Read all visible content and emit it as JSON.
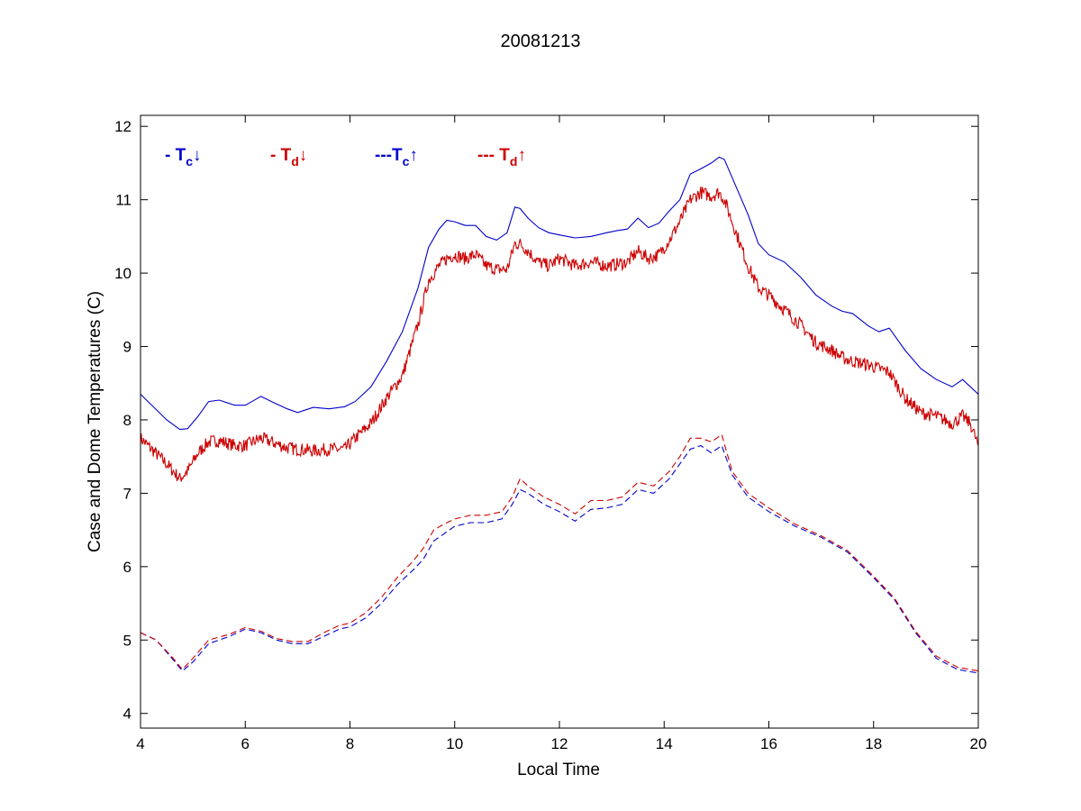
{
  "chart_data": {
    "type": "line",
    "title": "20081213",
    "xlabel": "Local Time",
    "ylabel": "Case and Dome Temperatures (C)",
    "xlim": [
      4,
      20
    ],
    "ylim": [
      3.8,
      12.15
    ],
    "xticks": [
      4,
      6,
      8,
      10,
      12,
      14,
      16,
      18,
      20
    ],
    "yticks": [
      4,
      5,
      6,
      7,
      8,
      9,
      10,
      11,
      12
    ],
    "grid": false,
    "legend_placement": "top-left, inside plot",
    "legend": [
      {
        "prefix": "- ",
        "base": "T",
        "sub": "c",
        "arrow": "↓",
        "color": "#0000cc"
      },
      {
        "prefix": "- ",
        "base": "T",
        "sub": "d",
        "arrow": "↓",
        "color": "#cc0000"
      },
      {
        "prefix": "---",
        "base": "T",
        "sub": "c",
        "arrow": "↑",
        "color": "#0000cc"
      },
      {
        "prefix": "--- ",
        "base": "T",
        "sub": "d",
        "arrow": "↑",
        "color": "#cc0000"
      }
    ],
    "series": [
      {
        "color": "#0000cc",
        "style": "solid",
        "noise": 0,
        "x": [
          4.0,
          4.5,
          4.75,
          4.9,
          5.1,
          5.3,
          5.5,
          5.8,
          6.0,
          6.2,
          6.3,
          6.5,
          6.8,
          7.0,
          7.3,
          7.6,
          7.9,
          8.1,
          8.4,
          8.7,
          9.0,
          9.3,
          9.5,
          9.7,
          9.85,
          10.0,
          10.2,
          10.4,
          10.6,
          10.8,
          11.0,
          11.15,
          11.25,
          11.4,
          11.6,
          11.8,
          12.0,
          12.3,
          12.6,
          12.9,
          13.1,
          13.3,
          13.5,
          13.7,
          13.9,
          14.1,
          14.3,
          14.5,
          14.7,
          14.9,
          15.05,
          15.15,
          15.3,
          15.6,
          15.8,
          16.0,
          16.3,
          16.6,
          16.9,
          17.2,
          17.4,
          17.6,
          17.9,
          18.1,
          18.3,
          18.6,
          18.9,
          19.2,
          19.5,
          19.7,
          19.85,
          20.0
        ],
        "y": [
          8.35,
          8.0,
          7.87,
          7.88,
          8.05,
          8.25,
          8.27,
          8.2,
          8.2,
          8.28,
          8.32,
          8.25,
          8.15,
          8.1,
          8.17,
          8.15,
          8.18,
          8.25,
          8.45,
          8.8,
          9.2,
          9.8,
          10.35,
          10.6,
          10.72,
          10.7,
          10.65,
          10.65,
          10.5,
          10.45,
          10.55,
          10.9,
          10.88,
          10.75,
          10.62,
          10.55,
          10.52,
          10.48,
          10.5,
          10.55,
          10.58,
          10.6,
          10.75,
          10.62,
          10.68,
          10.85,
          11.0,
          11.35,
          11.42,
          11.5,
          11.58,
          11.55,
          11.3,
          10.8,
          10.4,
          10.25,
          10.15,
          9.95,
          9.7,
          9.55,
          9.48,
          9.45,
          9.28,
          9.2,
          9.25,
          8.95,
          8.7,
          8.55,
          8.45,
          8.55,
          8.45,
          8.35
        ]
      },
      {
        "color": "#cc0000",
        "style": "solid",
        "noise": 0.09,
        "x": [
          4.0,
          4.5,
          4.75,
          4.9,
          5.1,
          5.3,
          5.5,
          5.8,
          6.0,
          6.2,
          6.3,
          6.5,
          6.8,
          7.0,
          7.3,
          7.6,
          7.9,
          8.1,
          8.4,
          8.7,
          9.0,
          9.3,
          9.5,
          9.7,
          9.85,
          10.0,
          10.2,
          10.4,
          10.6,
          10.8,
          11.0,
          11.15,
          11.25,
          11.4,
          11.6,
          11.8,
          12.0,
          12.3,
          12.6,
          12.9,
          13.1,
          13.3,
          13.5,
          13.7,
          13.9,
          14.1,
          14.3,
          14.5,
          14.7,
          14.9,
          15.05,
          15.15,
          15.3,
          15.6,
          15.8,
          16.0,
          16.3,
          16.6,
          16.9,
          17.2,
          17.4,
          17.6,
          17.9,
          18.1,
          18.3,
          18.6,
          18.9,
          19.2,
          19.5,
          19.7,
          19.85,
          20.0
        ],
        "y": [
          7.75,
          7.4,
          7.2,
          7.3,
          7.55,
          7.7,
          7.72,
          7.65,
          7.65,
          7.72,
          7.75,
          7.7,
          7.62,
          7.6,
          7.58,
          7.6,
          7.6,
          7.75,
          7.95,
          8.3,
          8.6,
          9.3,
          9.9,
          10.1,
          10.2,
          10.25,
          10.2,
          10.25,
          10.1,
          10.05,
          10.05,
          10.4,
          10.4,
          10.3,
          10.15,
          10.1,
          10.2,
          10.1,
          10.15,
          10.1,
          10.12,
          10.15,
          10.3,
          10.2,
          10.25,
          10.45,
          10.7,
          11.0,
          11.1,
          11.05,
          11.1,
          11.0,
          10.7,
          10.1,
          9.8,
          9.7,
          9.5,
          9.3,
          9.05,
          8.95,
          8.85,
          8.8,
          8.75,
          8.7,
          8.65,
          8.3,
          8.1,
          8.05,
          7.95,
          8.05,
          7.95,
          7.65
        ]
      },
      {
        "color": "#0000cc",
        "style": "dashed",
        "noise": 0,
        "x": [
          4.0,
          4.3,
          4.6,
          4.8,
          5.0,
          5.3,
          5.7,
          6.0,
          6.3,
          6.6,
          6.9,
          7.2,
          7.5,
          7.8,
          8.0,
          8.3,
          8.6,
          8.9,
          9.2,
          9.4,
          9.6,
          9.8,
          10.0,
          10.3,
          10.6,
          10.9,
          11.1,
          11.25,
          11.4,
          11.7,
          12.0,
          12.3,
          12.6,
          12.9,
          13.2,
          13.5,
          13.8,
          14.1,
          14.3,
          14.5,
          14.7,
          14.9,
          15.1,
          15.3,
          15.6,
          16.0,
          16.5,
          17.0,
          17.5,
          18.0,
          18.4,
          18.8,
          19.2,
          19.6,
          20.0
        ],
        "y": [
          5.1,
          5.0,
          4.75,
          4.58,
          4.7,
          4.95,
          5.05,
          5.15,
          5.1,
          5.0,
          4.95,
          4.95,
          5.05,
          5.15,
          5.18,
          5.3,
          5.5,
          5.75,
          5.95,
          6.1,
          6.35,
          6.45,
          6.55,
          6.6,
          6.6,
          6.65,
          6.85,
          7.05,
          7.0,
          6.85,
          6.75,
          6.62,
          6.78,
          6.8,
          6.85,
          7.05,
          7.0,
          7.2,
          7.4,
          7.6,
          7.65,
          7.55,
          7.65,
          7.25,
          6.95,
          6.75,
          6.55,
          6.4,
          6.2,
          5.85,
          5.55,
          5.1,
          4.75,
          4.6,
          4.55
        ]
      },
      {
        "color": "#cc0000",
        "style": "dashed",
        "noise": 0,
        "x": [
          4.0,
          4.3,
          4.6,
          4.8,
          5.0,
          5.3,
          5.7,
          6.0,
          6.3,
          6.6,
          6.9,
          7.2,
          7.5,
          7.8,
          8.0,
          8.3,
          8.6,
          8.9,
          9.2,
          9.4,
          9.6,
          9.8,
          10.0,
          10.3,
          10.6,
          10.9,
          11.1,
          11.25,
          11.4,
          11.7,
          12.0,
          12.3,
          12.6,
          12.9,
          13.2,
          13.5,
          13.8,
          14.1,
          14.3,
          14.5,
          14.7,
          14.9,
          15.1,
          15.3,
          15.6,
          16.0,
          16.5,
          17.0,
          17.5,
          18.0,
          18.4,
          18.8,
          19.2,
          19.6,
          20.0
        ],
        "y": [
          5.1,
          5.0,
          4.77,
          4.6,
          4.75,
          5.0,
          5.08,
          5.17,
          5.12,
          5.02,
          4.98,
          4.98,
          5.1,
          5.2,
          5.23,
          5.37,
          5.58,
          5.85,
          6.07,
          6.25,
          6.5,
          6.58,
          6.65,
          6.7,
          6.7,
          6.75,
          6.95,
          7.2,
          7.1,
          6.95,
          6.85,
          6.72,
          6.9,
          6.9,
          6.95,
          7.15,
          7.1,
          7.3,
          7.5,
          7.75,
          7.75,
          7.7,
          7.8,
          7.3,
          7.0,
          6.8,
          6.58,
          6.42,
          6.22,
          5.87,
          5.57,
          5.12,
          4.78,
          4.63,
          4.58
        ]
      }
    ]
  }
}
